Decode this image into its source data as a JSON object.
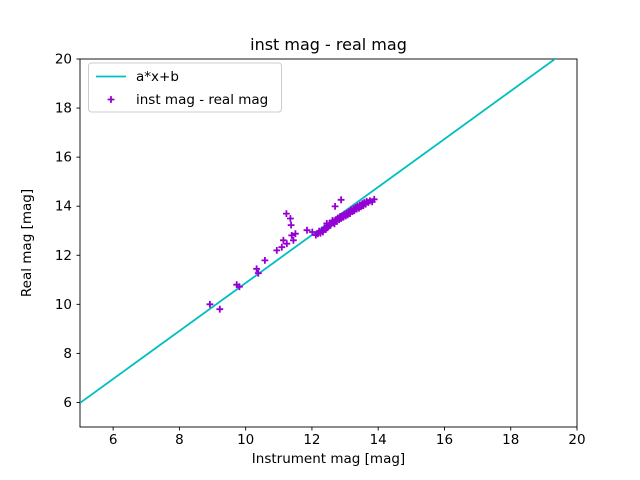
{
  "chart_data": {
    "type": "scatter",
    "title": "inst mag - real mag",
    "xlabel": "Instrument mag [mag]",
    "ylabel": "Real mag [mag]",
    "xlim": [
      5,
      20
    ],
    "ylim": [
      5,
      20
    ],
    "xticks": [
      6,
      8,
      10,
      12,
      14,
      16,
      18,
      20
    ],
    "yticks": [
      6,
      8,
      10,
      12,
      14,
      16,
      18,
      20
    ],
    "grid": false,
    "legend": {
      "position": "upper-left"
    },
    "colors": {
      "fit_line": "#00bfbf",
      "scatter": "#9400d3",
      "spine": "#000000",
      "legend_border": "#cccccc",
      "background": "#ffffff"
    },
    "series": [
      {
        "name": "a*x+b",
        "type": "line",
        "color": "#00bfbf",
        "slope": 0.978,
        "intercept": 1.09
      },
      {
        "name": "inst mag - real mag",
        "type": "scatter",
        "color": "#9400d3",
        "marker": "+",
        "points": [
          [
            8.92,
            10.0
          ],
          [
            9.22,
            9.8
          ],
          [
            9.73,
            10.8
          ],
          [
            9.81,
            10.72
          ],
          [
            10.33,
            11.45
          ],
          [
            10.38,
            11.27
          ],
          [
            10.58,
            11.79
          ],
          [
            10.94,
            12.2
          ],
          [
            11.09,
            12.33
          ],
          [
            11.14,
            12.61
          ],
          [
            11.24,
            12.47
          ],
          [
            11.39,
            12.81
          ],
          [
            11.44,
            12.61
          ],
          [
            11.23,
            13.7
          ],
          [
            11.35,
            13.5
          ],
          [
            11.37,
            13.23
          ],
          [
            11.5,
            12.88
          ],
          [
            11.85,
            13.02
          ],
          [
            12.01,
            12.95
          ],
          [
            12.12,
            12.82
          ],
          [
            12.18,
            12.88
          ],
          [
            12.22,
            12.98
          ],
          [
            12.26,
            12.9
          ],
          [
            12.3,
            13.02
          ],
          [
            12.33,
            12.95
          ],
          [
            12.38,
            13.12
          ],
          [
            12.42,
            13.05
          ],
          [
            12.45,
            13.3
          ],
          [
            12.46,
            13.12
          ],
          [
            12.5,
            13.18
          ],
          [
            12.53,
            13.3
          ],
          [
            12.56,
            13.22
          ],
          [
            12.6,
            13.32
          ],
          [
            12.62,
            13.42
          ],
          [
            12.65,
            13.35
          ],
          [
            12.68,
            13.28
          ],
          [
            12.7,
            13.99
          ],
          [
            12.72,
            13.45
          ],
          [
            12.75,
            13.38
          ],
          [
            12.78,
            13.52
          ],
          [
            12.82,
            13.45
          ],
          [
            12.85,
            13.58
          ],
          [
            12.88,
            14.26
          ],
          [
            12.88,
            13.5
          ],
          [
            12.92,
            13.62
          ],
          [
            12.95,
            13.55
          ],
          [
            12.98,
            13.68
          ],
          [
            13.02,
            13.6
          ],
          [
            13.05,
            13.72
          ],
          [
            13.08,
            13.65
          ],
          [
            13.12,
            13.78
          ],
          [
            13.15,
            13.7
          ],
          [
            13.18,
            13.85
          ],
          [
            13.22,
            13.78
          ],
          [
            13.25,
            13.9
          ],
          [
            13.28,
            13.82
          ],
          [
            13.32,
            13.95
          ],
          [
            13.35,
            13.88
          ],
          [
            13.38,
            14.0
          ],
          [
            13.42,
            13.92
          ],
          [
            13.45,
            14.05
          ],
          [
            13.48,
            13.98
          ],
          [
            13.52,
            14.1
          ],
          [
            13.55,
            14.02
          ],
          [
            13.58,
            14.15
          ],
          [
            13.62,
            14.08
          ],
          [
            13.65,
            14.2
          ],
          [
            13.7,
            14.15
          ],
          [
            13.75,
            14.22
          ],
          [
            13.82,
            14.18
          ],
          [
            13.88,
            14.28
          ]
        ]
      }
    ]
  }
}
